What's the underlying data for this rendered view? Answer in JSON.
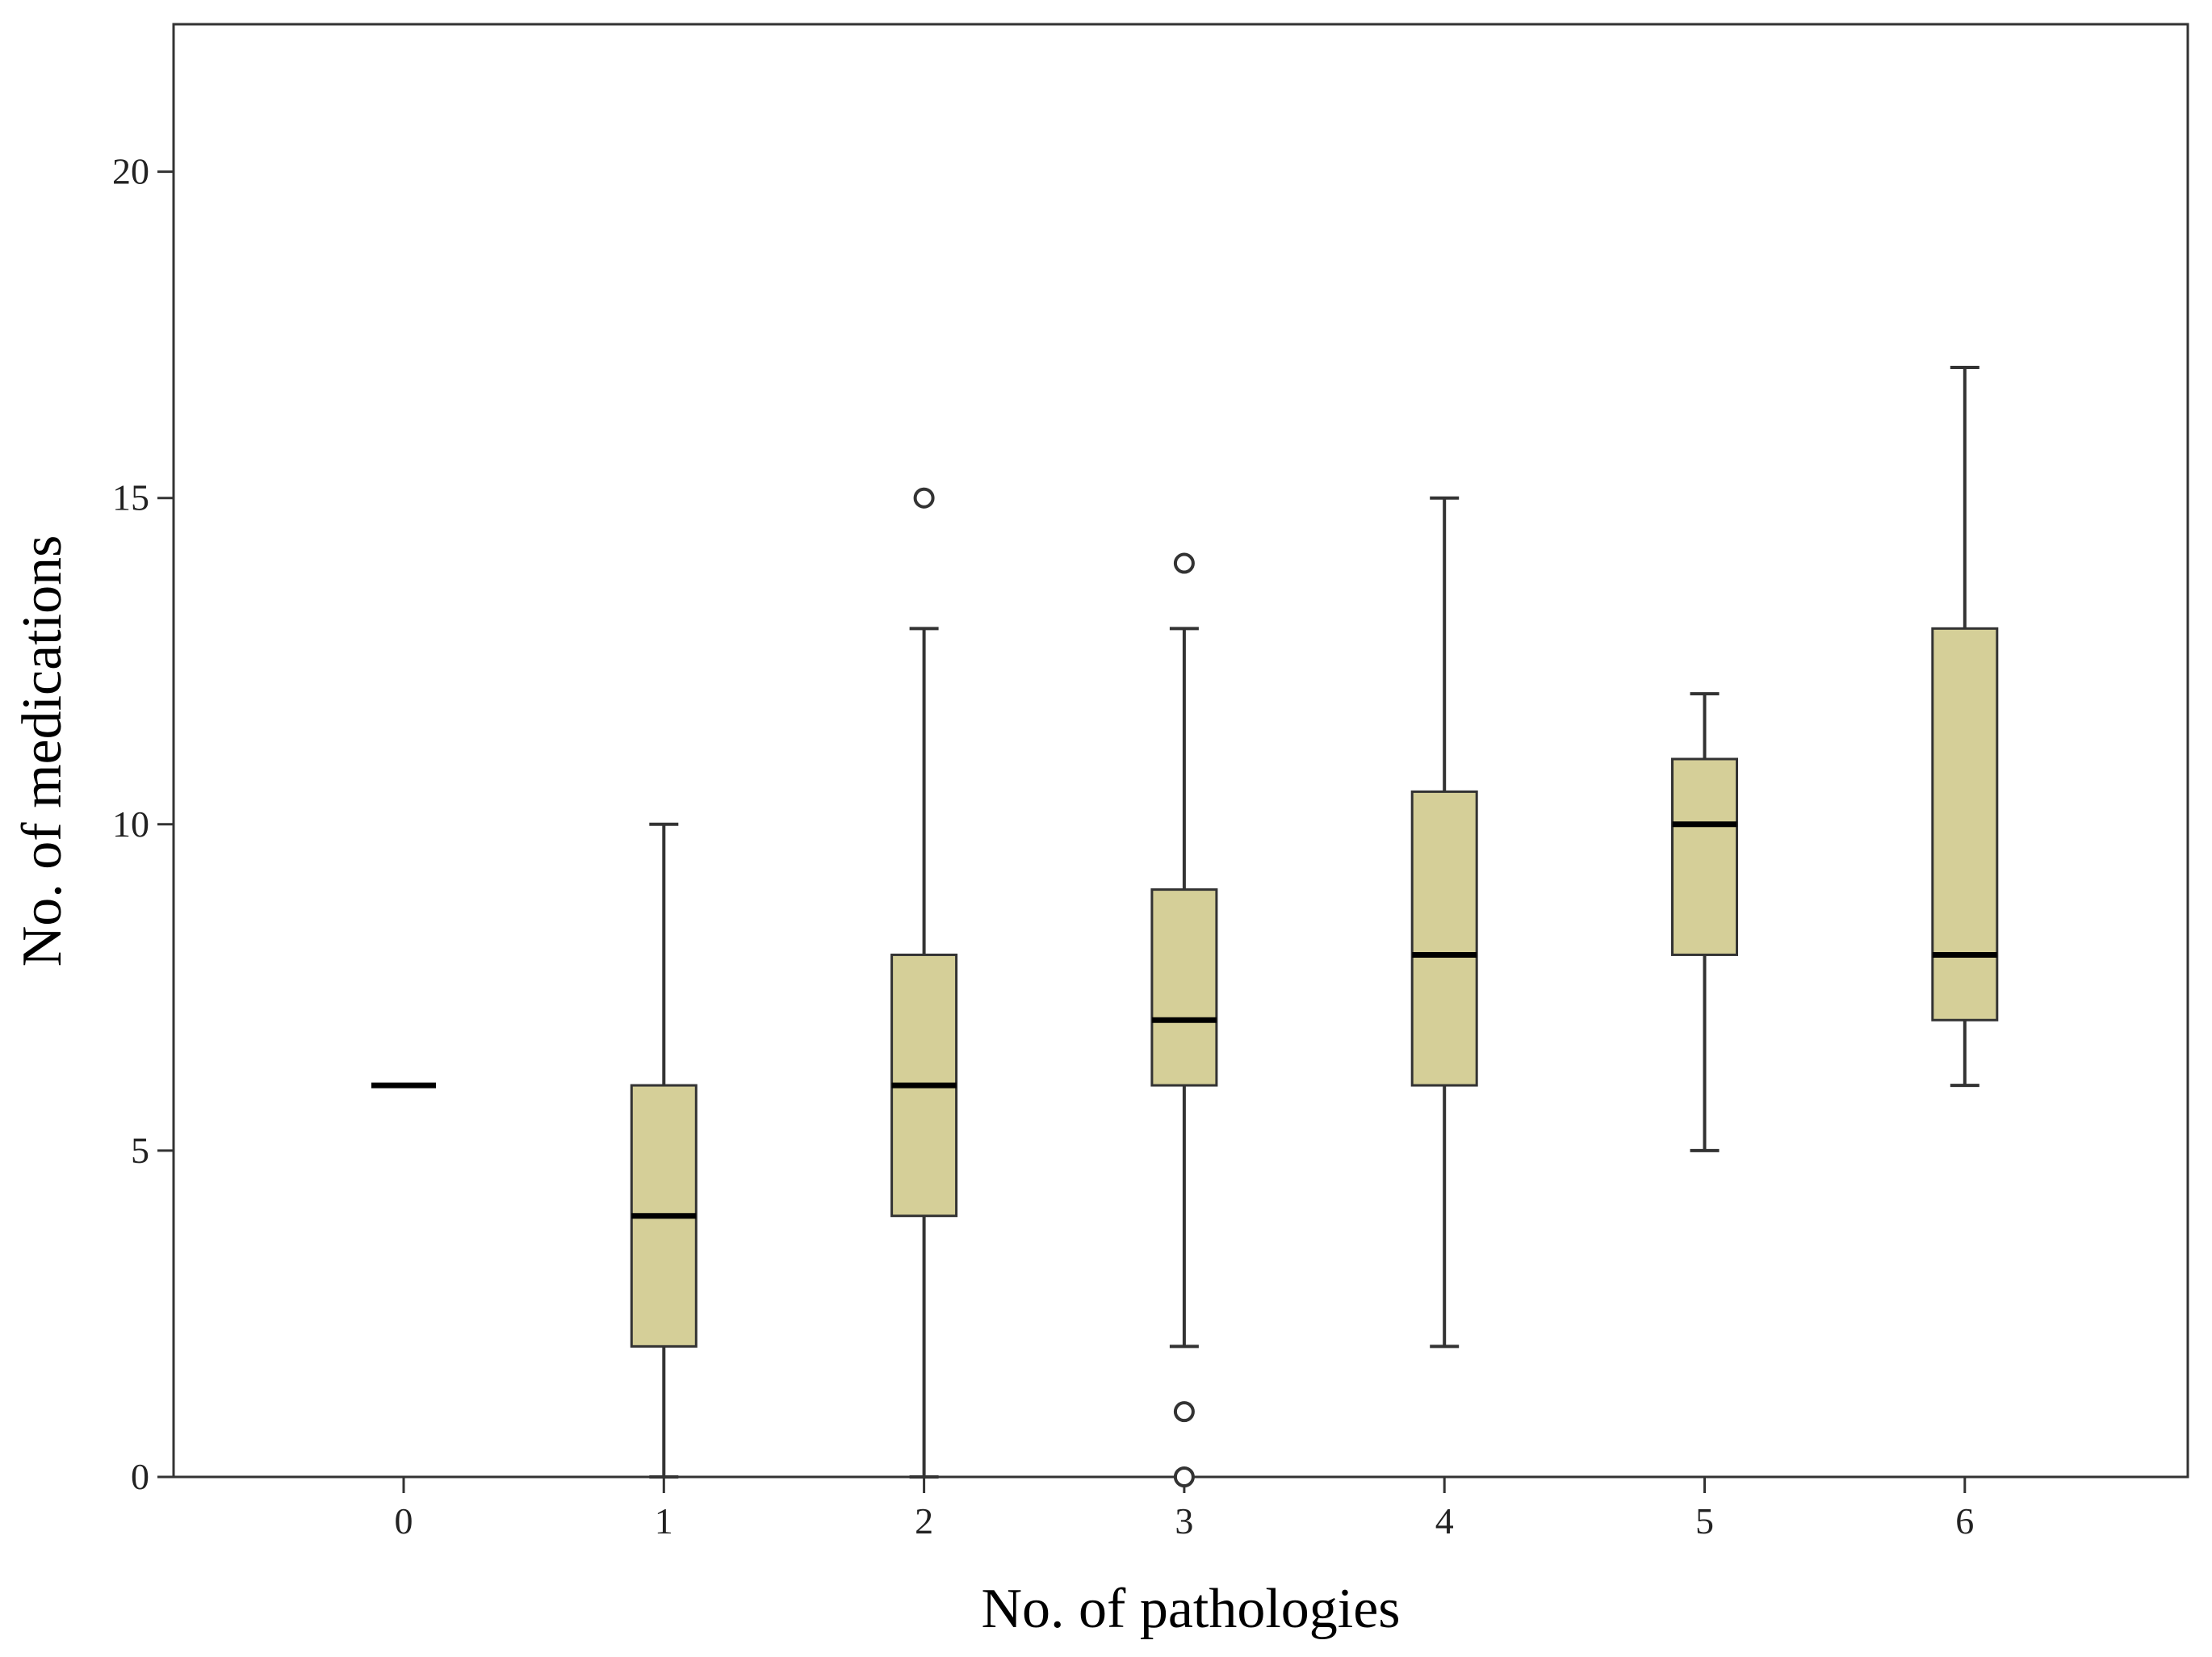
{
  "chart_data": {
    "type": "box",
    "xlabel": "No. of pathologies",
    "ylabel": "No. of medications",
    "categories": [
      "0",
      "1",
      "2",
      "3",
      "4",
      "5",
      "6"
    ],
    "ylim": [
      0,
      22
    ],
    "yticks": [
      0,
      5,
      10,
      15,
      20
    ],
    "grid": false,
    "legend": "none",
    "boxes": [
      {
        "category": "0",
        "whisker_low": 6,
        "q1": 6,
        "median": 6,
        "q3": 6,
        "whisker_high": 6,
        "outliers": []
      },
      {
        "category": "1",
        "whisker_low": 0,
        "q1": 2,
        "median": 4,
        "q3": 6,
        "whisker_high": 10,
        "outliers": []
      },
      {
        "category": "2",
        "whisker_low": 0,
        "q1": 4,
        "median": 6,
        "q3": 8,
        "whisker_high": 13,
        "outliers": [
          15
        ]
      },
      {
        "category": "3",
        "whisker_low": 2,
        "q1": 6,
        "median": 7,
        "q3": 9,
        "whisker_high": 13,
        "outliers": [
          14,
          1,
          0
        ]
      },
      {
        "category": "4",
        "whisker_low": 2,
        "q1": 6,
        "median": 8,
        "q3": 10.5,
        "whisker_high": 15,
        "outliers": []
      },
      {
        "category": "5",
        "whisker_low": 5,
        "q1": 8,
        "median": 10,
        "q3": 11,
        "whisker_high": 12,
        "outliers": []
      },
      {
        "category": "6",
        "whisker_low": 6,
        "q1": 7,
        "median": 8,
        "q3": 13,
        "whisker_high": 17,
        "outliers": []
      }
    ],
    "colors": {
      "box_fill": "#d5cf98",
      "box_stroke": "#333333",
      "median": "#000000",
      "axis": "#333333",
      "outlier": "#333333"
    }
  }
}
